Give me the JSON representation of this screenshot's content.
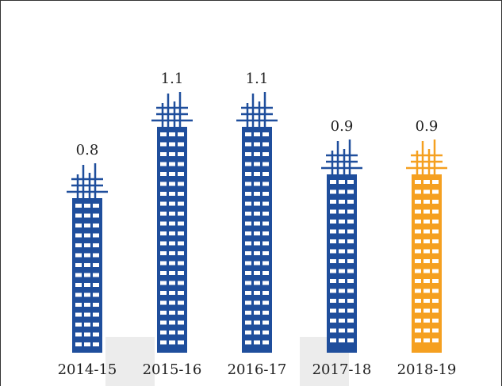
{
  "chart_data": {
    "type": "pictograph-bar",
    "categories": [
      "2014-15",
      "2015-16",
      "2016-17",
      "2017-18",
      "2018-19"
    ],
    "values": [
      0.8,
      1.1,
      1.1,
      0.9,
      0.9
    ],
    "colors": [
      "#1f4e9c",
      "#1f4e9c",
      "#1f4e9c",
      "#1f4e9c",
      "#f5a020"
    ],
    "ylim": [
      0.15,
      1.3
    ]
  }
}
